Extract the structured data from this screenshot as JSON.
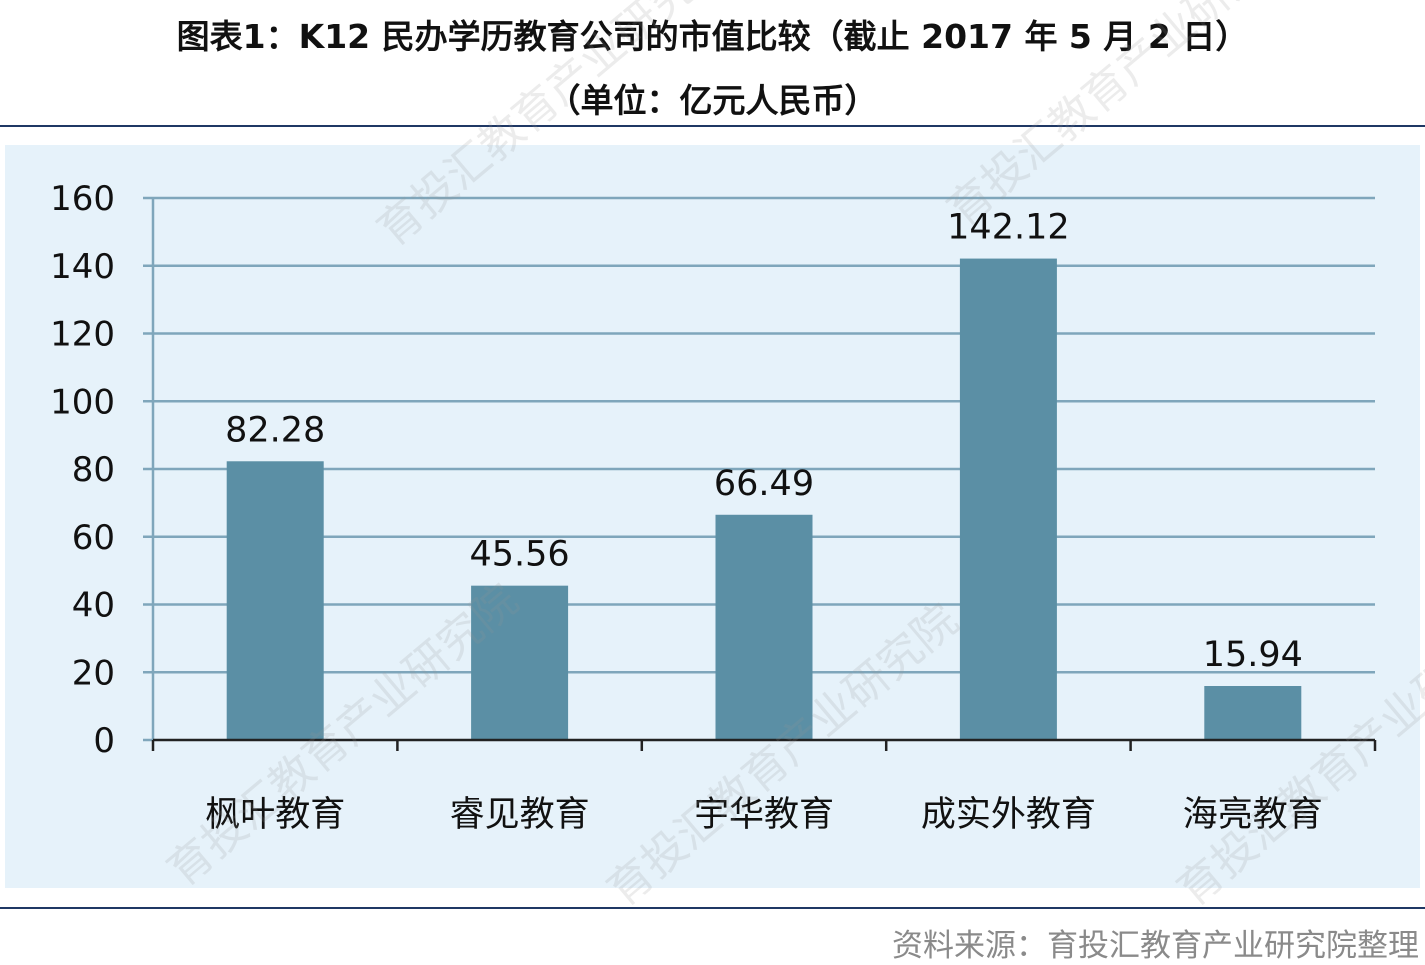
{
  "title": "图表1：K12 民办学历教育公司的市值比较（截止 2017 年 5 月 2 日）",
  "subtitle": "（单位：亿元人民币）",
  "source": "资料来源：育投汇教育产业研究院整理",
  "watermark": "育投汇教育产业研究院",
  "colors": {
    "bar": "#5b8fa5",
    "grid": "#7fa6bb",
    "panel": "#e6f2fa",
    "rule": "#1f3864"
  },
  "chart_data": {
    "type": "bar",
    "title": "图表1：K12 民办学历教育公司的市值比较（截止 2017 年 5 月 2 日）",
    "subtitle": "（单位：亿元人民币）",
    "categories": [
      "枫叶教育",
      "睿见教育",
      "宇华教育",
      "成实外教育",
      "海亮教育"
    ],
    "values": [
      82.28,
      45.56,
      66.49,
      142.12,
      15.94
    ],
    "data_labels": [
      "82.28",
      "45.56",
      "66.49",
      "142.12",
      "15.94"
    ],
    "ylim": [
      0,
      160
    ],
    "yticks": [
      "0",
      "20",
      "40",
      "60",
      "80",
      "100",
      "120",
      "140",
      "160"
    ],
    "grid": true,
    "legend": "none"
  }
}
